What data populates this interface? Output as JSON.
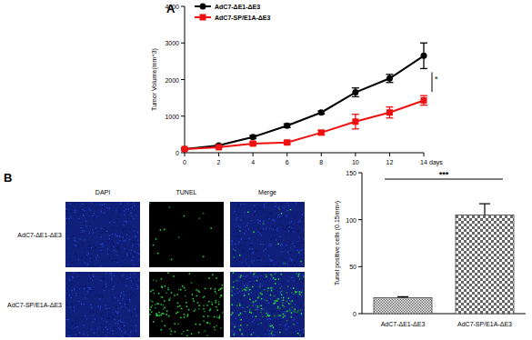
{
  "chart_data": [
    {
      "type": "line",
      "x_label": "days",
      "y_label": "Tumor Volume(mm^3)",
      "x": [
        0,
        2,
        4,
        6,
        8,
        10,
        12,
        14
      ],
      "series": [
        {
          "name": "AdC7-ΔE1-ΔE3",
          "color": "#000000",
          "marker": "circle",
          "values": [
            100,
            200,
            430,
            740,
            1100,
            1650,
            2030,
            2650
          ],
          "errors": [
            20,
            30,
            40,
            50,
            40,
            120,
            110,
            350
          ]
        },
        {
          "name": "AdC7-SP/E1A-ΔE3",
          "color": "#ee1111",
          "marker": "square",
          "values": [
            100,
            150,
            250,
            280,
            550,
            850,
            1100,
            1430
          ],
          "errors": [
            20,
            20,
            40,
            40,
            60,
            200,
            150,
            130
          ]
        }
      ],
      "xlim": [
        0,
        14
      ],
      "xticks": [
        0,
        2,
        4,
        6,
        8,
        10,
        12,
        14
      ],
      "ylim": [
        0,
        4000
      ],
      "yticks": [
        0,
        1000,
        2000,
        3000,
        4000
      ],
      "legend": "top-left",
      "annotations": [
        "*"
      ]
    },
    {
      "type": "bar",
      "y_label": "Tunel positive cells (0.15mm²)",
      "categories": [
        "AdC7-ΔE1-ΔE3",
        "AdC7-SP/E1A-ΔE3"
      ],
      "values": [
        17,
        105
      ],
      "errors": [
        1,
        12
      ],
      "color": "#666666",
      "ylim": [
        0,
        150
      ],
      "yticks": [
        0,
        50,
        100,
        150
      ],
      "annotations": [
        "***"
      ]
    }
  ],
  "figure": {
    "panel_labels": [
      "A",
      "B"
    ],
    "image_columns": [
      "DAPI",
      "TUNEL",
      "Merge"
    ],
    "image_rows": [
      "AdC7-ΔE1-ΔE3",
      "AdC7-SP/E1A-ΔE3"
    ]
  }
}
